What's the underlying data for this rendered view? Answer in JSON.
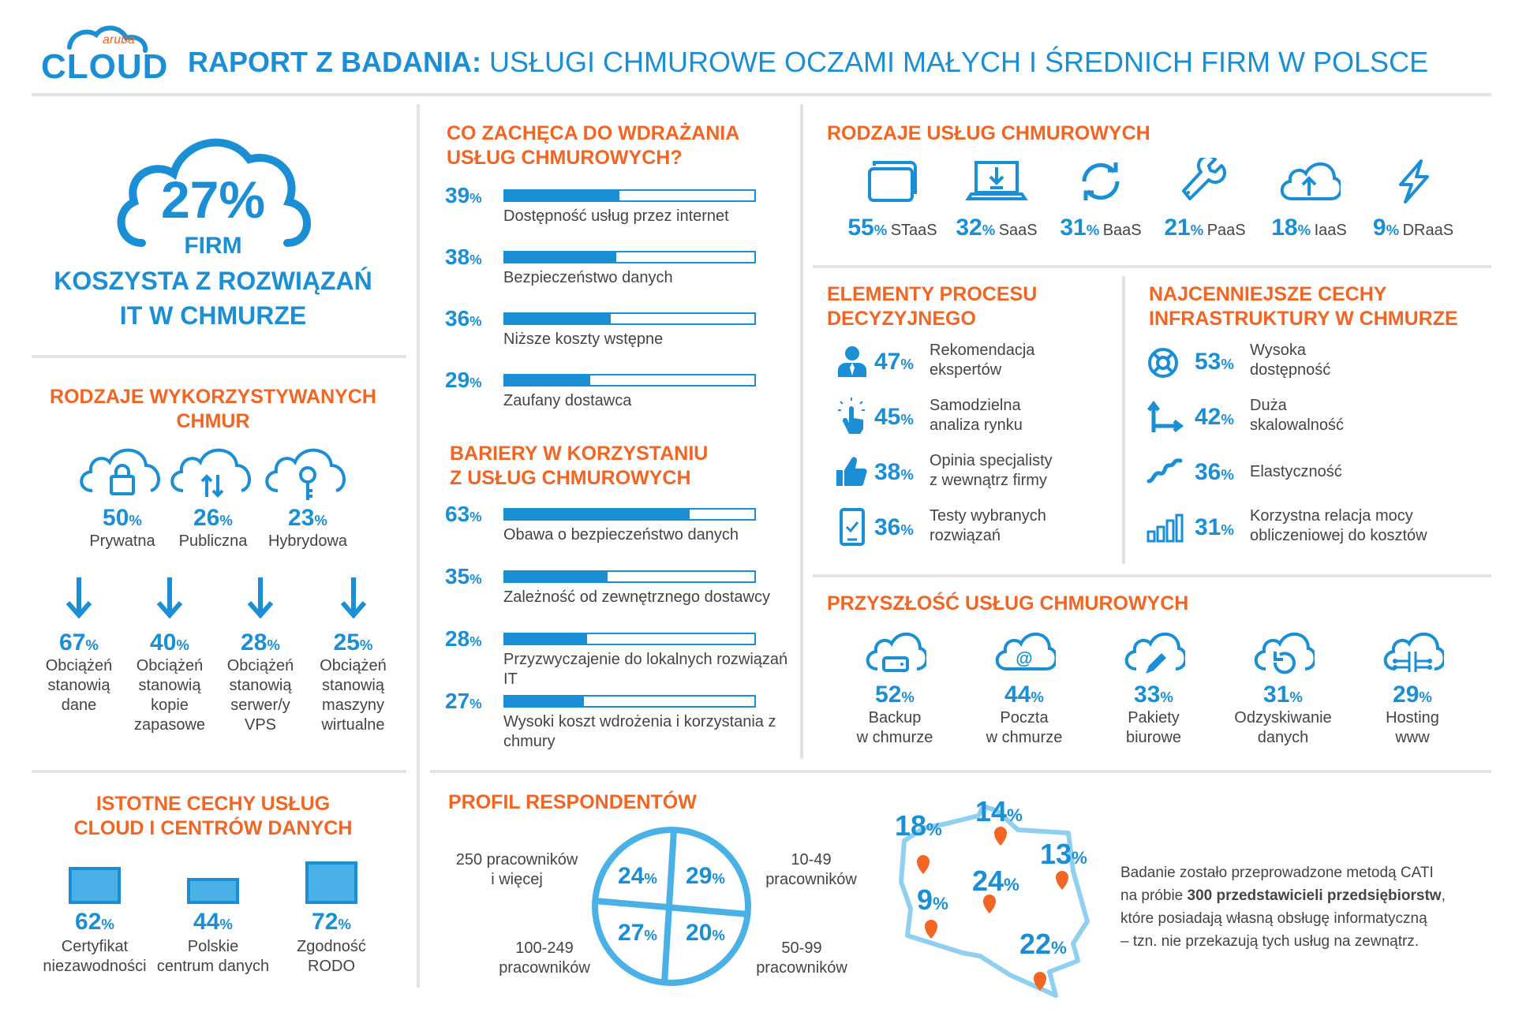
{
  "brand": {
    "top": "aruba",
    "main": "CLOUD"
  },
  "header": {
    "title_bold": "RAPORT Z BADANIA:",
    "title_rest": "USŁUGI CHMUROWE OCZAMI MAŁYCH I ŚREDNICH FIRM W POLSCE"
  },
  "hero": {
    "pct": "27%",
    "line1": "FIRM",
    "line2": "KOSZYSTA Z ROZWIĄZAŃ",
    "line3": "IT W CHMURZE"
  },
  "cloud_types": {
    "title1": "RODZAJE WYKORZYSTYWANYCH",
    "title2": "CHMUR",
    "items": [
      {
        "pct": "50",
        "label": "Prywatna",
        "icon": "cloud-lock-icon"
      },
      {
        "pct": "26",
        "label": "Publiczna",
        "icon": "cloud-transfer-icon"
      },
      {
        "pct": "23",
        "label": "Hybrydowa",
        "icon": "cloud-key-icon"
      }
    ],
    "workloads": [
      {
        "pct": "67",
        "label": "Obciążeń stanowią dane"
      },
      {
        "pct": "40",
        "label": "Obciążeń stanowią kopie zapasowe"
      },
      {
        "pct": "28",
        "label": "Obciążeń stanowią serwer/y VPS"
      },
      {
        "pct": "25",
        "label": "Obciążeń stanowią maszyny wirtualne"
      }
    ]
  },
  "features": {
    "title1": "ISTOTNE CECHY USŁUG",
    "title2": "CLOUD I CENTRÓW DANYCH",
    "items": [
      {
        "pct": "62",
        "label1": "Certyfikat",
        "label2": "niezawodności"
      },
      {
        "pct": "44",
        "label1": "Polskie",
        "label2": "centrum danych"
      },
      {
        "pct": "72",
        "label1": "Zgodność",
        "label2": "RODO"
      }
    ]
  },
  "encourage": {
    "title1": "CO ZACHĘCA DO WDRAŻANIA",
    "title2": "USŁUG CHMUROWYCH?",
    "items": [
      {
        "pct": "39",
        "value": 39,
        "label": "Dostępność usług przez internet"
      },
      {
        "pct": "38",
        "value": 38,
        "label": "Bezpieczeństwo danych"
      },
      {
        "pct": "36",
        "value": 36,
        "label": "Niższe koszty wstępne"
      },
      {
        "pct": "29",
        "value": 29,
        "label": "Zaufany dostawca"
      }
    ]
  },
  "barriers": {
    "title1": "BARIERY W KORZYSTANIU",
    "title2": "Z USŁUG CHMUROWYCH",
    "items": [
      {
        "pct": "63",
        "value": 63,
        "label": "Obawa o bezpieczeństwo danych"
      },
      {
        "pct": "35",
        "value": 35,
        "label": "Zależność od zewnętrznego dostawcy"
      },
      {
        "pct": "28",
        "value": 28,
        "label": "Przyzwyczajenie do lokalnych rozwiązań IT"
      },
      {
        "pct": "27",
        "value": 27,
        "label": "Wysoki koszt wdrożenia i korzystania z chmury"
      }
    ]
  },
  "service_types": {
    "title": "RODZAJE USŁUG CHMUROWYCH",
    "items": [
      {
        "pct": "55",
        "label": "STaaS",
        "icon": "folder-icon"
      },
      {
        "pct": "32",
        "label": "SaaS",
        "icon": "laptop-download-icon"
      },
      {
        "pct": "31",
        "label": "BaaS",
        "icon": "sync-icon"
      },
      {
        "pct": "21",
        "label": "PaaS",
        "icon": "wrench-icon"
      },
      {
        "pct": "18",
        "label": "IaaS",
        "icon": "cloud-upload-icon"
      },
      {
        "pct": "9",
        "label": "DRaaS",
        "icon": "lightning-icon"
      }
    ]
  },
  "decision": {
    "title1": "ELEMENTY PROCESU",
    "title2": "DECYZYJNEGO",
    "items": [
      {
        "pct": "47",
        "label1": "Rekomendacja",
        "label2": "ekspertów",
        "icon": "expert-icon"
      },
      {
        "pct": "45",
        "label1": "Samodzielna",
        "label2": "analiza rynku",
        "icon": "touch-icon"
      },
      {
        "pct": "38",
        "label1": "Opinia specjalisty",
        "label2": "z wewnątrz firmy",
        "icon": "thumbs-up-icon"
      },
      {
        "pct": "36",
        "label1": "Testy wybranych",
        "label2": "rozwiązań",
        "icon": "tablet-check-icon"
      }
    ]
  },
  "infra": {
    "title1": "NAJCENNIEJSZE CECHY",
    "title2": "INFRASTRUKTURY W CHMURZE",
    "items": [
      {
        "pct": "53",
        "label1": "Wysoka",
        "label2": "dostępność",
        "icon": "lifebuoy-icon"
      },
      {
        "pct": "42",
        "label1": "Duża",
        "label2": "skalowalność",
        "icon": "scale-arrows-icon"
      },
      {
        "pct": "36",
        "label1": "Elastyczność",
        "label2": "",
        "icon": "wave-icon"
      },
      {
        "pct": "31",
        "label1": "Korzystna relacja mocy",
        "label2": "obliczeniowej do kosztów",
        "icon": "bars-icon"
      }
    ]
  },
  "future": {
    "title": "PRZYSZŁOŚĆ USŁUG CHMUROWYCH",
    "items": [
      {
        "pct": "52",
        "label1": "Backup",
        "label2": "w chmurze",
        "icon": "cloud-drive-icon"
      },
      {
        "pct": "44",
        "label1": "Poczta",
        "label2": "w chmurze",
        "icon": "cloud-mail-icon"
      },
      {
        "pct": "33",
        "label1": "Pakiety",
        "label2": "biurowe",
        "icon": "cloud-pen-icon"
      },
      {
        "pct": "31",
        "label1": "Odzyskiwanie",
        "label2": "danych",
        "icon": "cloud-restore-icon"
      },
      {
        "pct": "29",
        "label1": "Hosting",
        "label2": "www",
        "icon": "cloud-circuit-icon"
      }
    ]
  },
  "profile": {
    "title": "PROFIL RESPONDENTÓW",
    "quadrants": [
      {
        "pct": "24",
        "label1": "250 pracowników",
        "label2": "i więcej"
      },
      {
        "pct": "29",
        "label1": "10-49",
        "label2": "pracowników"
      },
      {
        "pct": "27",
        "label1": "100-249",
        "label2": "pracowników"
      },
      {
        "pct": "20",
        "label1": "50-99",
        "label2": "pracowników"
      }
    ]
  },
  "regions": [
    {
      "pct": "18"
    },
    {
      "pct": "14"
    },
    {
      "pct": "13"
    },
    {
      "pct": "9"
    },
    {
      "pct": "24"
    },
    {
      "pct": "22"
    }
  ],
  "method": {
    "line1": "Badanie zostało przeprowadzone metodą CATI",
    "line2a": "na próbie ",
    "line2b": "300 przedstawicieli przedsiębiorstw",
    "line2c": ",",
    "line3": "które posiadają własną obsługę informatyczną",
    "line4": "– tzn. nie przekazują tych usług na zewnątrz."
  },
  "colors": {
    "blue": "#1a8fd6",
    "orange": "#f26522",
    "divider": "#e3e3e3"
  }
}
